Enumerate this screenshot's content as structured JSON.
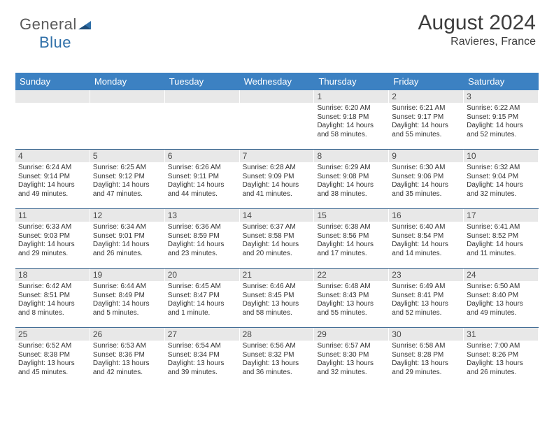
{
  "logo": {
    "part1": "General",
    "part2": "Blue"
  },
  "title": "August 2024",
  "subtitle": "Ravieres, France",
  "colors": {
    "header_blue": "#3c81c2",
    "divider_blue": "#2f5e8a",
    "daynum_bg": "#e8e8e8",
    "text": "#333333",
    "logo_blue": "#2f6fa8"
  },
  "daysOfWeek": [
    "Sunday",
    "Monday",
    "Tuesday",
    "Wednesday",
    "Thursday",
    "Friday",
    "Saturday"
  ],
  "weeks": [
    [
      {
        "empty": true
      },
      {
        "empty": true
      },
      {
        "empty": true
      },
      {
        "empty": true
      },
      {
        "n": "1",
        "sr": "6:20 AM",
        "ss": "9:18 PM",
        "dl": "14 hours and 58 minutes."
      },
      {
        "n": "2",
        "sr": "6:21 AM",
        "ss": "9:17 PM",
        "dl": "14 hours and 55 minutes."
      },
      {
        "n": "3",
        "sr": "6:22 AM",
        "ss": "9:15 PM",
        "dl": "14 hours and 52 minutes."
      }
    ],
    [
      {
        "n": "4",
        "sr": "6:24 AM",
        "ss": "9:14 PM",
        "dl": "14 hours and 49 minutes."
      },
      {
        "n": "5",
        "sr": "6:25 AM",
        "ss": "9:12 PM",
        "dl": "14 hours and 47 minutes."
      },
      {
        "n": "6",
        "sr": "6:26 AM",
        "ss": "9:11 PM",
        "dl": "14 hours and 44 minutes."
      },
      {
        "n": "7",
        "sr": "6:28 AM",
        "ss": "9:09 PM",
        "dl": "14 hours and 41 minutes."
      },
      {
        "n": "8",
        "sr": "6:29 AM",
        "ss": "9:08 PM",
        "dl": "14 hours and 38 minutes."
      },
      {
        "n": "9",
        "sr": "6:30 AM",
        "ss": "9:06 PM",
        "dl": "14 hours and 35 minutes."
      },
      {
        "n": "10",
        "sr": "6:32 AM",
        "ss": "9:04 PM",
        "dl": "14 hours and 32 minutes."
      }
    ],
    [
      {
        "n": "11",
        "sr": "6:33 AM",
        "ss": "9:03 PM",
        "dl": "14 hours and 29 minutes."
      },
      {
        "n": "12",
        "sr": "6:34 AM",
        "ss": "9:01 PM",
        "dl": "14 hours and 26 minutes."
      },
      {
        "n": "13",
        "sr": "6:36 AM",
        "ss": "8:59 PM",
        "dl": "14 hours and 23 minutes."
      },
      {
        "n": "14",
        "sr": "6:37 AM",
        "ss": "8:58 PM",
        "dl": "14 hours and 20 minutes."
      },
      {
        "n": "15",
        "sr": "6:38 AM",
        "ss": "8:56 PM",
        "dl": "14 hours and 17 minutes."
      },
      {
        "n": "16",
        "sr": "6:40 AM",
        "ss": "8:54 PM",
        "dl": "14 hours and 14 minutes."
      },
      {
        "n": "17",
        "sr": "6:41 AM",
        "ss": "8:52 PM",
        "dl": "14 hours and 11 minutes."
      }
    ],
    [
      {
        "n": "18",
        "sr": "6:42 AM",
        "ss": "8:51 PM",
        "dl": "14 hours and 8 minutes."
      },
      {
        "n": "19",
        "sr": "6:44 AM",
        "ss": "8:49 PM",
        "dl": "14 hours and 5 minutes."
      },
      {
        "n": "20",
        "sr": "6:45 AM",
        "ss": "8:47 PM",
        "dl": "14 hours and 1 minute."
      },
      {
        "n": "21",
        "sr": "6:46 AM",
        "ss": "8:45 PM",
        "dl": "13 hours and 58 minutes."
      },
      {
        "n": "22",
        "sr": "6:48 AM",
        "ss": "8:43 PM",
        "dl": "13 hours and 55 minutes."
      },
      {
        "n": "23",
        "sr": "6:49 AM",
        "ss": "8:41 PM",
        "dl": "13 hours and 52 minutes."
      },
      {
        "n": "24",
        "sr": "6:50 AM",
        "ss": "8:40 PM",
        "dl": "13 hours and 49 minutes."
      }
    ],
    [
      {
        "n": "25",
        "sr": "6:52 AM",
        "ss": "8:38 PM",
        "dl": "13 hours and 45 minutes."
      },
      {
        "n": "26",
        "sr": "6:53 AM",
        "ss": "8:36 PM",
        "dl": "13 hours and 42 minutes."
      },
      {
        "n": "27",
        "sr": "6:54 AM",
        "ss": "8:34 PM",
        "dl": "13 hours and 39 minutes."
      },
      {
        "n": "28",
        "sr": "6:56 AM",
        "ss": "8:32 PM",
        "dl": "13 hours and 36 minutes."
      },
      {
        "n": "29",
        "sr": "6:57 AM",
        "ss": "8:30 PM",
        "dl": "13 hours and 32 minutes."
      },
      {
        "n": "30",
        "sr": "6:58 AM",
        "ss": "8:28 PM",
        "dl": "13 hours and 29 minutes."
      },
      {
        "n": "31",
        "sr": "7:00 AM",
        "ss": "8:26 PM",
        "dl": "13 hours and 26 minutes."
      }
    ]
  ],
  "labels": {
    "sunrise": "Sunrise: ",
    "sunset": "Sunset: ",
    "daylight": "Daylight: "
  }
}
